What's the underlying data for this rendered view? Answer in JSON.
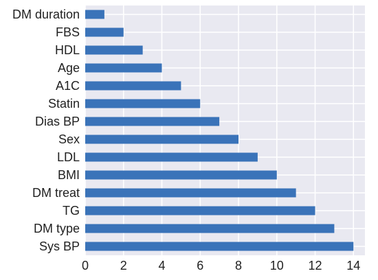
{
  "chart_data": {
    "type": "bar",
    "orientation": "horizontal",
    "title": "",
    "xlabel": "",
    "ylabel": "",
    "categories": [
      "DM duration",
      "FBS",
      "HDL",
      "Age",
      "A1C",
      "Statin",
      "Dias BP",
      "Sex",
      "LDL",
      "BMI",
      "DM treat",
      "TG",
      "DM type",
      "Sys BP"
    ],
    "values": [
      1,
      2,
      3,
      4,
      5,
      6,
      7,
      8,
      9,
      10,
      11,
      12,
      13,
      14
    ],
    "xlim": [
      0,
      14.6
    ],
    "xticks": [
      0,
      2,
      4,
      6,
      8,
      10,
      12,
      14
    ],
    "grid": true,
    "legend": "none",
    "colors": {
      "bar": "#3a73b9",
      "plot_background": "#e9e9f1",
      "grid": "#ffffff",
      "text": "#222222"
    }
  }
}
